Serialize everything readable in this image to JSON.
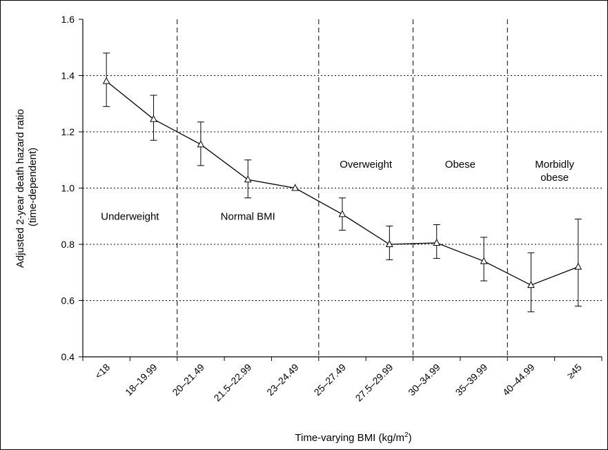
{
  "chart_data": {
    "type": "line",
    "title": "",
    "xlabel": "Time-varying BMI (kg/m",
    "xlabel_sup": "2",
    "xlabel_close": ")",
    "ylabel_line1": "Adjusted 2-year death hazard ratio",
    "ylabel_line2": "(time-dependent)",
    "ylim": [
      0.4,
      1.6
    ],
    "yticks": [
      "0.4",
      "0.6",
      "0.8",
      "1.0",
      "1.2",
      "1.4",
      "1.6"
    ],
    "categories": [
      "<18",
      "18–19.99",
      "20–21.49",
      "21.5–22.99",
      "23–24.49",
      "25–27.49",
      "27.5–29.99",
      "30–34.99",
      "35–39.99",
      "40–44.99",
      "≥45"
    ],
    "series": [
      {
        "values": [
          1.38,
          1.245,
          1.155,
          1.03,
          1.0,
          0.907,
          0.8,
          0.805,
          0.74,
          0.655,
          0.72
        ],
        "lower": [
          1.29,
          1.17,
          1.08,
          0.965,
          1.0,
          0.85,
          0.745,
          0.75,
          0.67,
          0.56,
          0.58
        ],
        "upper": [
          1.48,
          1.33,
          1.235,
          1.1,
          1.0,
          0.965,
          0.865,
          0.87,
          0.825,
          0.77,
          0.89
        ]
      }
    ],
    "regions": [
      {
        "lines": [
          "Underweight"
        ],
        "y": 0.9
      },
      {
        "lines": [
          "Normal BMI"
        ],
        "y": 0.9
      },
      {
        "lines": [
          "Overweight"
        ],
        "y": 1.085
      },
      {
        "lines": [
          "Obese"
        ],
        "y": 1.085
      },
      {
        "lines": [
          "Morbidly",
          "obese"
        ],
        "y": 1.085
      }
    ],
    "region_boundaries_after_category": [
      1,
      4,
      6,
      8
    ],
    "grid": "horizontal dotted",
    "line_color": "#000000"
  }
}
